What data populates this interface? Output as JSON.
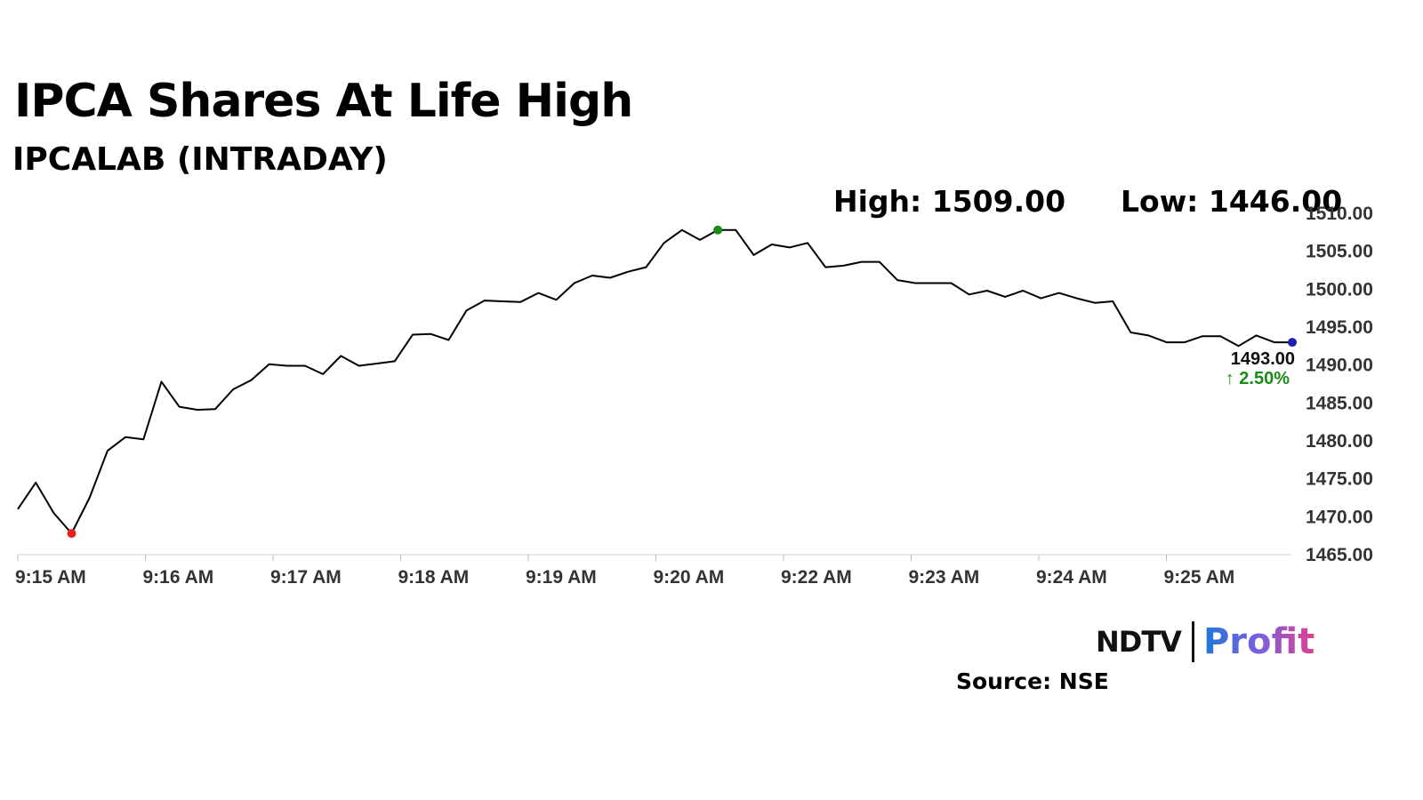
{
  "header": {
    "title": "IPCA Shares At Life High",
    "subtitle": "IPCALAB (INTRADAY)"
  },
  "stats": {
    "high": "High: 1509.00",
    "low": "Low: 1446.00"
  },
  "last": {
    "price_label": "1493.00",
    "change_label": "↑ 2.50%"
  },
  "branding": {
    "logo_ndtv": "NDTV",
    "logo_profit": "Profit",
    "source": "Source: NSE"
  },
  "colors": {
    "line": "#000000",
    "min_marker": "#e8201e",
    "max_marker": "#1a8a1a",
    "last_marker": "#1f1fb4",
    "change_positive": "#1a8a1a",
    "axis_text": "#333333"
  },
  "chart_data": {
    "type": "line",
    "title": "IPCA Shares At Life High",
    "subtitle": "IPCALAB (INTRADAY)",
    "xlabel": "",
    "ylabel": "",
    "ylim": [
      1465,
      1510
    ],
    "yticks": [
      1510,
      1505,
      1500,
      1495,
      1490,
      1485,
      1480,
      1475,
      1470,
      1465
    ],
    "ytick_labels": [
      "1510.00",
      "1505.00",
      "1500.00",
      "1495.00",
      "1490.00",
      "1485.00",
      "1480.00",
      "1475.00",
      "1470.00",
      "1465.00"
    ],
    "xtick_labels": [
      "9:15 AM",
      "9:16 AM",
      "9:17 AM",
      "9:18 AM",
      "9:19 AM",
      "9:20 AM",
      "9:22 AM",
      "9:23 AM",
      "9:24 AM",
      "9:25 AM"
    ],
    "grid": false,
    "series": [
      {
        "values": [
          1471.0,
          1474.5,
          1470.5,
          1467.8,
          1472.5,
          1478.7,
          1480.5,
          1480.2,
          1487.8,
          1484.5,
          1484.1,
          1484.2,
          1486.8,
          1488.0,
          1490.1,
          1489.9,
          1489.9,
          1488.8,
          1491.2,
          1489.9,
          1490.2,
          1490.5,
          1494.0,
          1494.1,
          1493.3,
          1497.2,
          1498.5,
          1498.4,
          1498.3,
          1499.5,
          1498.6,
          1500.8,
          1501.8,
          1501.5,
          1502.3,
          1502.9,
          1506.1,
          1507.8,
          1506.5,
          1507.8,
          1507.8,
          1504.5,
          1505.9,
          1505.5,
          1506.1,
          1502.9,
          1503.1,
          1503.6,
          1503.6,
          1501.2,
          1500.8,
          1500.8,
          1500.8,
          1499.3,
          1499.8,
          1499.0,
          1499.8,
          1498.8,
          1499.5,
          1498.8,
          1498.2,
          1498.4,
          1494.3,
          1493.9,
          1493.0,
          1493.0,
          1493.8,
          1493.8,
          1492.5,
          1493.9,
          1493.0,
          1493.0
        ],
        "min_point": {
          "index": 3,
          "value": 1467.8
        },
        "max_point": {
          "index": 39,
          "value": 1507.8
        },
        "last_point": {
          "value": 1493.0,
          "change_pct": 2.5
        }
      }
    ]
  }
}
